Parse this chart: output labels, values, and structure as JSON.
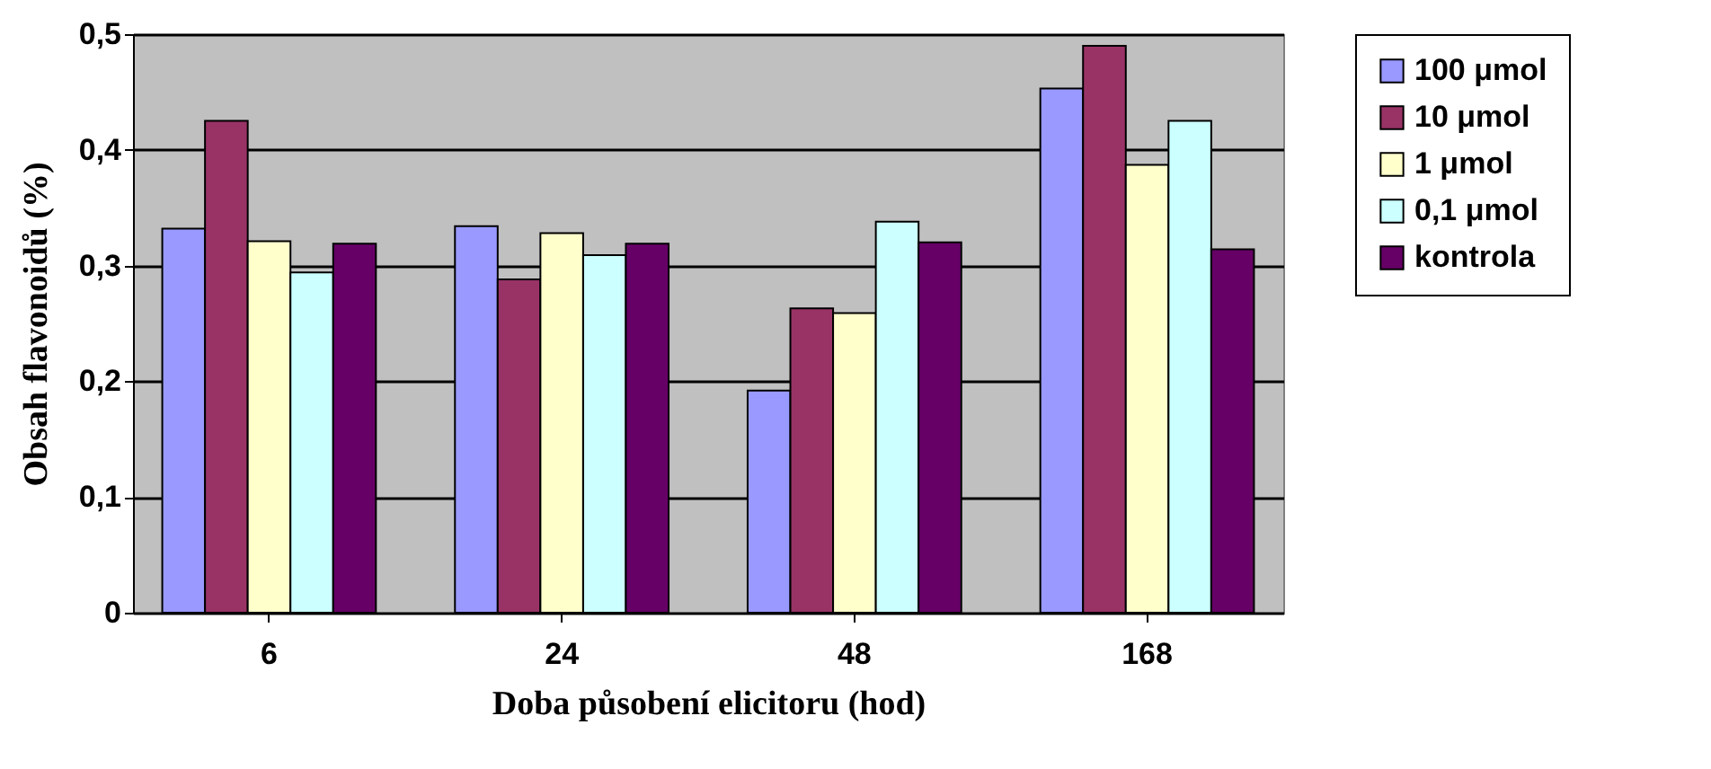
{
  "chart_data": {
    "type": "bar",
    "xlabel": "Doba působení elicitoru (hod)",
    "ylabel": "Obsah flavonoidů (%)",
    "categories": [
      "6",
      "24",
      "48",
      "168"
    ],
    "series": [
      {
        "name": "100 μmol",
        "color": "#9999ff",
        "values": [
          0.332,
          0.334,
          0.192,
          0.453
        ]
      },
      {
        "name": "10 μmol",
        "color": "#993366",
        "values": [
          0.425,
          0.288,
          0.263,
          0.49
        ]
      },
      {
        "name": "1 μmol",
        "color": "#ffffcc",
        "values": [
          0.321,
          0.328,
          0.259,
          0.387
        ]
      },
      {
        "name": "0,1 μmol",
        "color": "#ccffff",
        "values": [
          0.294,
          0.309,
          0.338,
          0.425
        ]
      },
      {
        "name": "kontrola",
        "color": "#660066",
        "values": [
          0.319,
          0.319,
          0.32,
          0.314
        ]
      }
    ],
    "ylim": [
      0,
      0.5
    ],
    "yticks": [
      {
        "value": 0,
        "label": "0"
      },
      {
        "value": 0.1,
        "label": "0,1"
      },
      {
        "value": 0.2,
        "label": "0,2"
      },
      {
        "value": 0.3,
        "label": "0,3"
      },
      {
        "value": 0.4,
        "label": "0,4"
      },
      {
        "value": 0.5,
        "label": "0,5"
      }
    ],
    "grid": "y",
    "legend": "right"
  }
}
